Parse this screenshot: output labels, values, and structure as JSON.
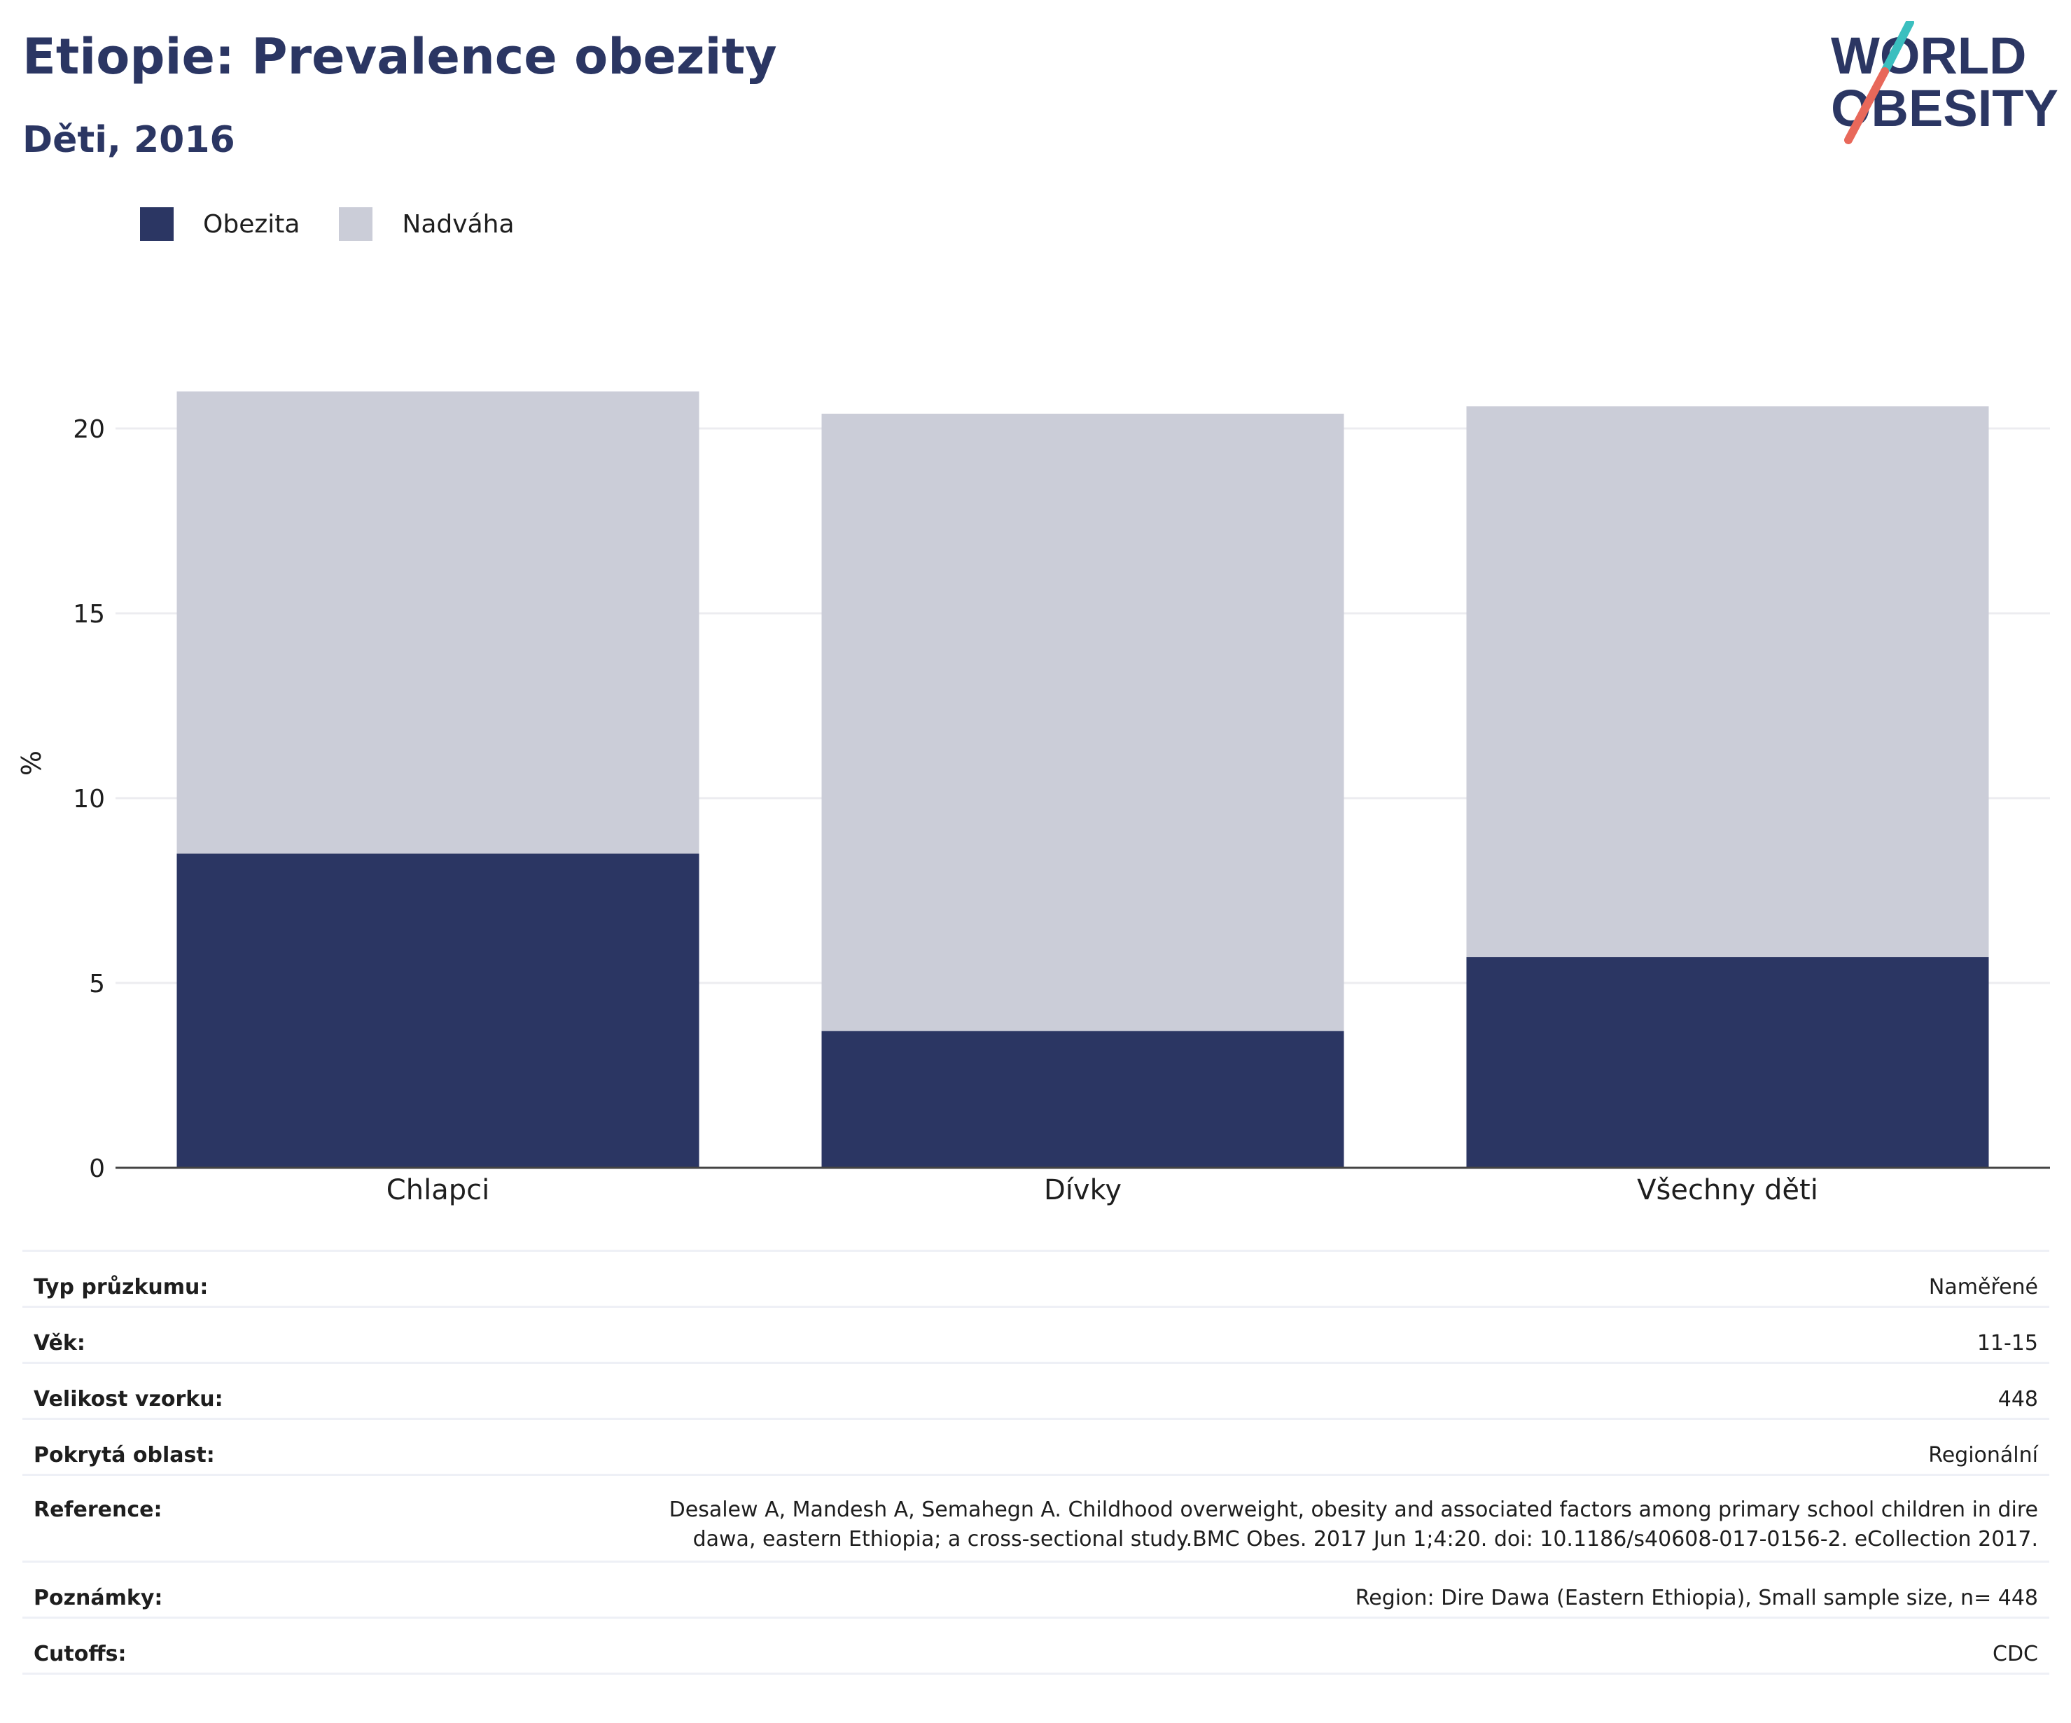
{
  "header": {
    "title": "Etiopie: Prevalence obezity",
    "subtitle": "Děti, 2016"
  },
  "logo": {
    "line1": "WORLD",
    "line2": "OBESITY",
    "accent_top": "#3bbfbf",
    "accent_bottom": "#e8685a"
  },
  "colors": {
    "obesity": "#2b3663",
    "overweight": "#cbcdd8",
    "title": "#2b3663"
  },
  "chart_data": {
    "type": "bar",
    "stacked": true,
    "categories": [
      "Chlapci",
      "Dívky",
      "Všechny děti"
    ],
    "series": [
      {
        "name": "Obezita",
        "values": [
          8.5,
          3.7,
          5.7
        ]
      },
      {
        "name": "Nadváha",
        "values": [
          12.5,
          16.7,
          14.9
        ]
      }
    ],
    "ylabel": "%",
    "ylim": [
      0,
      21
    ],
    "yticks": [
      0,
      5,
      10,
      15,
      20
    ],
    "grid": true,
    "legend_position": "top-left"
  },
  "info": [
    {
      "key": "Typ průzkumu:",
      "value": "Naměřené"
    },
    {
      "key": "Věk:",
      "value": "11-15"
    },
    {
      "key": "Velikost vzorku:",
      "value": "448"
    },
    {
      "key": "Pokrytá oblast:",
      "value": "Regionální"
    },
    {
      "key": "Reference:",
      "value_lines": [
        "Desalew A, Mandesh A, Semahegn A. Childhood overweight, obesity and associated factors among primary school children in dire",
        "dawa, eastern Ethiopia; a cross-sectional study.BMC Obes. 2017 Jun 1;4:20. doi: 10.1186/s40608-017-0156-2. eCollection 2017."
      ]
    },
    {
      "key": "Poznámky:",
      "value": "Region: Dire Dawa (Eastern Ethiopia), Small sample size, n= 448"
    },
    {
      "key": "Cutoffs:",
      "value": "CDC"
    }
  ]
}
